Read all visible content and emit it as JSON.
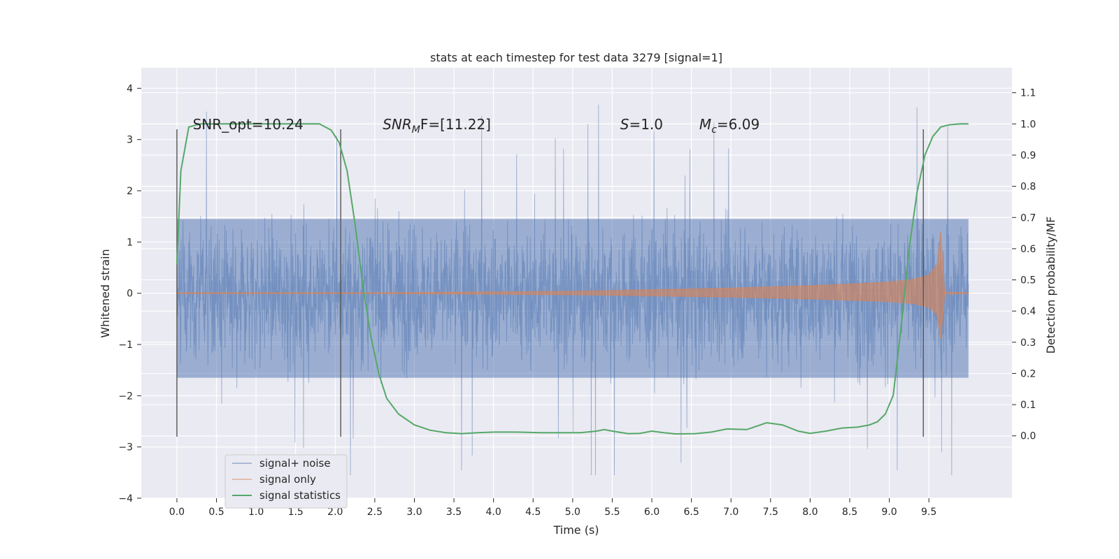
{
  "chart_data": {
    "type": "line",
    "title": "stats at each timestep for test data 3279 [signal=1]",
    "xlabel": "Time (s)",
    "ylabel": "Whitened strain",
    "ylabel_right": "Detection probability/MF",
    "xlim": [
      -0.45,
      10.55
    ],
    "ylim": [
      -4.0,
      4.4
    ],
    "ylim_right": [
      -0.2,
      1.18
    ],
    "x_ticks": [
      "0.0",
      "0.5",
      "1.0",
      "1.5",
      "2.0",
      "2.5",
      "3.0",
      "3.5",
      "4.0",
      "4.5",
      "5.0",
      "5.5",
      "6.0",
      "6.5",
      "7.0",
      "7.5",
      "8.0",
      "8.5",
      "9.0",
      "9.5"
    ],
    "y_ticks": [
      "4",
      "3",
      "2",
      "1",
      "0",
      "−1",
      "−2",
      "−3",
      "−4"
    ],
    "y_ticks_right": [
      "1.1",
      "1.0",
      "0.9",
      "0.8",
      "0.7",
      "0.6",
      "0.5",
      "0.4",
      "0.3",
      "0.2",
      "0.1",
      "0.0"
    ],
    "grid": true,
    "legend_position": "lower-left",
    "annotations": [
      {
        "text": "SNR_opt=10.24",
        "x": 0.2,
        "y": 3.2
      },
      {
        "text": "SNR",
        "sub": "M",
        "after": "F=[11.22]",
        "italic": true,
        "x": 2.6,
        "y": 3.2
      },
      {
        "text": "S",
        "after": "=1.0",
        "italic": true,
        "x": 5.6,
        "y": 3.2
      },
      {
        "text": "M",
        "sub": "c",
        "after": "=6.09",
        "italic": true,
        "x": 6.6,
        "y": 3.2
      }
    ],
    "vertical_markers": [
      {
        "x": 0.0,
        "ymin": -2.8,
        "ymax": 3.2
      },
      {
        "x": 2.07,
        "ymin": -2.8,
        "ymax": 3.2
      },
      {
        "x": 9.43,
        "ymin": -2.8,
        "ymax": 3.2
      }
    ],
    "series": [
      {
        "name": "signal+ noise",
        "color": "#4c72b0",
        "x_start": 0.0,
        "x_end": 10.0,
        "band_low": -1.65,
        "band_high": 1.45,
        "peak_max": 4.05,
        "peak_min": -3.55
      },
      {
        "name": "signal only",
        "color": "#dd8452",
        "x": [
          0.0,
          1.0,
          2.0,
          3.0,
          4.0,
          5.0,
          6.0,
          7.0,
          8.0,
          8.5,
          9.0,
          9.3,
          9.5,
          9.6,
          9.65,
          9.7,
          10.0
        ],
        "amplitude": [
          0.01,
          0.01,
          0.01,
          0.015,
          0.025,
          0.04,
          0.07,
          0.1,
          0.15,
          0.18,
          0.22,
          0.27,
          0.36,
          0.55,
          1.2,
          0.02,
          0.01
        ]
      },
      {
        "name": "signal statistics",
        "color": "#55a868",
        "axis": "right",
        "x": [
          0.0,
          0.05,
          0.1,
          0.15,
          0.3,
          0.5,
          1.0,
          1.5,
          1.8,
          1.95,
          2.05,
          2.15,
          2.25,
          2.35,
          2.45,
          2.55,
          2.65,
          2.8,
          3.0,
          3.2,
          3.4,
          3.6,
          3.8,
          4.0,
          4.3,
          4.6,
          4.9,
          5.1,
          5.3,
          5.4,
          5.5,
          5.7,
          5.85,
          6.0,
          6.15,
          6.3,
          6.55,
          6.75,
          6.95,
          7.2,
          7.45,
          7.65,
          7.85,
          8.0,
          8.2,
          8.4,
          8.6,
          8.75,
          8.85,
          8.95,
          9.05,
          9.15,
          9.25,
          9.35,
          9.45,
          9.55,
          9.65,
          9.75,
          9.9,
          10.0
        ],
        "y": [
          0.55,
          0.85,
          0.92,
          0.99,
          1.0,
          1.0,
          1.0,
          1.0,
          1.0,
          0.98,
          0.94,
          0.85,
          0.68,
          0.48,
          0.32,
          0.2,
          0.12,
          0.07,
          0.035,
          0.018,
          0.01,
          0.007,
          0.01,
          0.012,
          0.012,
          0.01,
          0.01,
          0.01,
          0.015,
          0.02,
          0.015,
          0.007,
          0.008,
          0.015,
          0.01,
          0.006,
          0.007,
          0.012,
          0.022,
          0.02,
          0.042,
          0.035,
          0.015,
          0.008,
          0.015,
          0.025,
          0.028,
          0.035,
          0.045,
          0.07,
          0.13,
          0.35,
          0.6,
          0.78,
          0.9,
          0.96,
          0.99,
          0.997,
          1.0,
          1.0
        ]
      }
    ]
  }
}
